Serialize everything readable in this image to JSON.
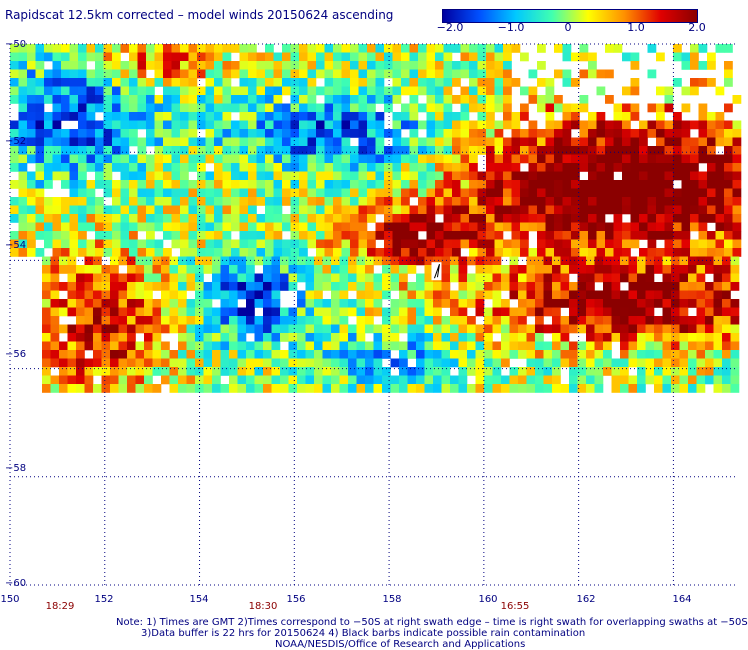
{
  "title": "Rapidscat 12.5km corrected – model winds 20150624 ascending",
  "colorbar": {
    "labels": [
      "−2.0",
      "−1.0",
      "0",
      "1.0",
      "2.0"
    ],
    "values": [
      -2.0,
      -1.0,
      0,
      1.0,
      2.0
    ],
    "range": [
      -2.0,
      2.0
    ],
    "colors": [
      "#0000a0",
      "#0050ff",
      "#00c8ff",
      "#40ffb0",
      "#ffff00",
      "#ff9000",
      "#e00000",
      "#8b0000"
    ]
  },
  "map": {
    "lat_labels": [
      "−50",
      "−52",
      "−54",
      "−56",
      "−58",
      "−60"
    ],
    "lat_values": [
      -50,
      -52,
      -54,
      -56,
      -58,
      -60
    ],
    "lon_labels": [
      "150",
      "152",
      "154",
      "156",
      "158",
      "160",
      "162",
      "164"
    ],
    "lon_values": [
      150,
      152,
      154,
      156,
      158,
      160,
      162,
      164
    ],
    "lon_range": [
      150,
      165.3
    ],
    "lat_range": [
      -50,
      -60
    ],
    "grid": "dotted",
    "time_labels": [
      {
        "text": "18:29",
        "lon": 151
      },
      {
        "text": "18:30",
        "lon": 155.3
      },
      {
        "text": "16:55",
        "lon": 160.6
      }
    ],
    "rain_flag_barb": {
      "lon": 159.0,
      "lat": -54.2
    }
  },
  "notes": {
    "line1": "Note: 1) Times are GMT 2)Times correspond to −50S at right swath edge – time is right swath for overlapping swaths at −50S",
    "line2": "3)Data buffer is 22 hrs for 20150624 4) Black barbs indicate possible rain contamination",
    "line3": "NOAA/NESDIS/Office of Research and Applications"
  }
}
